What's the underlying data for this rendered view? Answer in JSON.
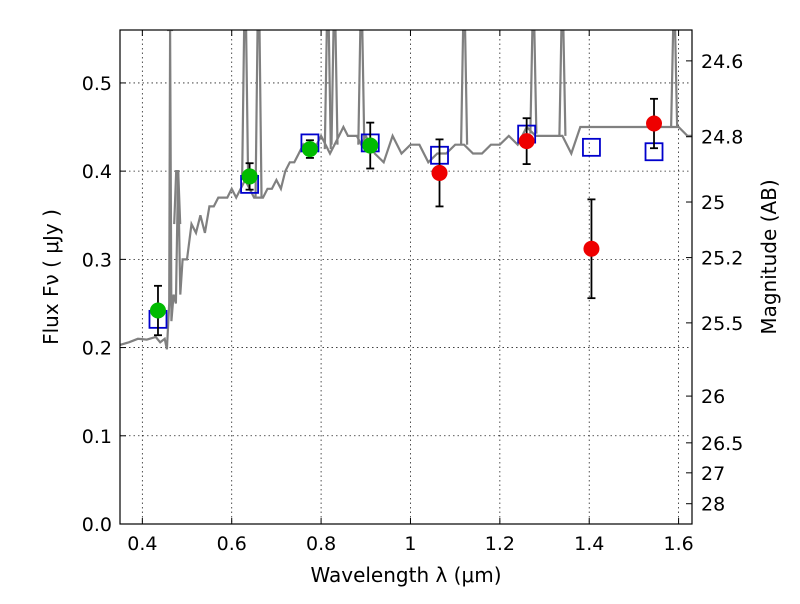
{
  "chart_data": {
    "type": "scatter",
    "title": "",
    "xlabel": "Wavelength  λ (μm)",
    "ylabel": "Flux  Fν  ( μJy )",
    "ylabel_right": "Magnitude (AB)",
    "xlim": [
      0.35,
      1.63
    ],
    "ylim": [
      0.0,
      0.56
    ],
    "grid": true,
    "x_ticks": [
      {
        "value": 0.4,
        "label": "0.4"
      },
      {
        "value": 0.6,
        "label": "0.6"
      },
      {
        "value": 0.8,
        "label": "0.8"
      },
      {
        "value": 1.0,
        "label": "1"
      },
      {
        "value": 1.2,
        "label": "1.2"
      },
      {
        "value": 1.4,
        "label": "1.4"
      },
      {
        "value": 1.6,
        "label": "1.6"
      }
    ],
    "y_ticks": [
      {
        "value": 0.0,
        "label": "0.0"
      },
      {
        "value": 0.1,
        "label": "0.1"
      },
      {
        "value": 0.2,
        "label": "0.2"
      },
      {
        "value": 0.3,
        "label": "0.3"
      },
      {
        "value": 0.4,
        "label": "0.4"
      },
      {
        "value": 0.5,
        "label": "0.5"
      }
    ],
    "right_ticks": [
      {
        "flux": 0.525,
        "label": "24.6"
      },
      {
        "flux": 0.439,
        "label": "24.8"
      },
      {
        "flux": 0.365,
        "label": "25"
      },
      {
        "flux": 0.302,
        "label": "25.2"
      },
      {
        "flux": 0.228,
        "label": "25.5"
      },
      {
        "flux": 0.145,
        "label": "26"
      },
      {
        "flux": 0.092,
        "label": "26.5"
      },
      {
        "flux": 0.058,
        "label": "27"
      },
      {
        "flux": 0.023,
        "label": "28"
      }
    ],
    "colors": {
      "spectrum": "#808080",
      "model": "#0000cc",
      "green": "#00bb00",
      "red": "#ee0000",
      "errorbar": "#000000"
    },
    "spectrum": {
      "x": [
        0.35,
        0.37,
        0.39,
        0.41,
        0.43,
        0.44,
        0.45,
        0.455,
        0.46,
        0.462,
        0.465,
        0.47,
        0.475,
        0.48,
        0.485,
        0.49,
        0.5,
        0.51,
        0.52,
        0.53,
        0.54,
        0.55,
        0.56,
        0.57,
        0.58,
        0.59,
        0.6,
        0.61,
        0.62,
        0.63,
        0.64,
        0.65,
        0.66,
        0.67,
        0.68,
        0.69,
        0.7,
        0.71,
        0.72,
        0.73,
        0.74,
        0.75,
        0.76,
        0.77,
        0.78,
        0.79,
        0.8,
        0.81,
        0.82,
        0.83,
        0.84,
        0.85,
        0.86,
        0.87,
        0.88,
        0.89,
        0.9,
        0.92,
        0.94,
        0.96,
        0.98,
        1.0,
        1.02,
        1.04,
        1.06,
        1.08,
        1.1,
        1.12,
        1.14,
        1.16,
        1.18,
        1.2,
        1.22,
        1.24,
        1.26,
        1.28,
        1.3,
        1.32,
        1.34,
        1.36,
        1.38,
        1.4,
        1.42,
        1.44,
        1.46,
        1.48,
        1.5,
        1.52,
        1.54,
        1.56,
        1.58,
        1.6,
        1.62,
        1.63
      ],
      "y": [
        0.203,
        0.206,
        0.21,
        0.209,
        0.212,
        0.206,
        0.21,
        0.198,
        0.25,
        0.56,
        0.23,
        0.26,
        0.25,
        0.4,
        0.26,
        0.3,
        0.3,
        0.34,
        0.33,
        0.35,
        0.33,
        0.36,
        0.36,
        0.37,
        0.37,
        0.37,
        0.38,
        0.37,
        0.38,
        0.39,
        0.38,
        0.37,
        0.37,
        0.37,
        0.38,
        0.38,
        0.39,
        0.38,
        0.4,
        0.41,
        0.41,
        0.42,
        0.43,
        0.42,
        0.43,
        0.43,
        0.44,
        0.43,
        0.42,
        0.43,
        0.44,
        0.45,
        0.44,
        0.44,
        0.44,
        0.43,
        0.44,
        0.42,
        0.41,
        0.44,
        0.42,
        0.43,
        0.43,
        0.41,
        0.42,
        0.42,
        0.43,
        0.43,
        0.42,
        0.42,
        0.43,
        0.43,
        0.44,
        0.43,
        0.45,
        0.44,
        0.44,
        0.44,
        0.44,
        0.42,
        0.45,
        0.45,
        0.45,
        0.45,
        0.45,
        0.45,
        0.45,
        0.45,
        0.45,
        0.45,
        0.45,
        0.45,
        0.44,
        0.44
      ],
      "spikes": [
        {
          "x": 0.462,
          "peak": 0.56
        },
        {
          "x": 0.478,
          "peak": 0.4
        },
        {
          "x": 0.63,
          "peak": 0.56
        },
        {
          "x": 0.66,
          "peak": 0.56
        },
        {
          "x": 0.815,
          "peak": 0.56
        },
        {
          "x": 0.83,
          "peak": 0.56
        },
        {
          "x": 0.89,
          "peak": 0.56
        },
        {
          "x": 1.12,
          "peak": 0.56
        },
        {
          "x": 1.275,
          "peak": 0.56
        },
        {
          "x": 1.34,
          "peak": 0.56
        },
        {
          "x": 1.59,
          "peak": 0.56
        }
      ]
    },
    "model_squares": [
      {
        "x": 0.435,
        "y": 0.232
      },
      {
        "x": 0.64,
        "y": 0.385
      },
      {
        "x": 0.775,
        "y": 0.432
      },
      {
        "x": 0.91,
        "y": 0.432
      },
      {
        "x": 1.065,
        "y": 0.418
      },
      {
        "x": 1.26,
        "y": 0.442
      },
      {
        "x": 1.405,
        "y": 0.427
      },
      {
        "x": 1.545,
        "y": 0.422
      }
    ],
    "green_points": [
      {
        "x": 0.435,
        "y": 0.242,
        "yerr": 0.028
      },
      {
        "x": 0.64,
        "y": 0.394,
        "yerr": 0.015
      },
      {
        "x": 0.775,
        "y": 0.425,
        "yerr": 0.01
      },
      {
        "x": 0.91,
        "y": 0.429,
        "yerr": 0.026
      }
    ],
    "red_points": [
      {
        "x": 1.065,
        "y": 0.398,
        "yerr": 0.038
      },
      {
        "x": 1.26,
        "y": 0.434,
        "yerr": 0.026
      },
      {
        "x": 1.405,
        "y": 0.312,
        "yerr": 0.056
      },
      {
        "x": 1.545,
        "y": 0.454,
        "yerr": 0.028
      }
    ]
  }
}
